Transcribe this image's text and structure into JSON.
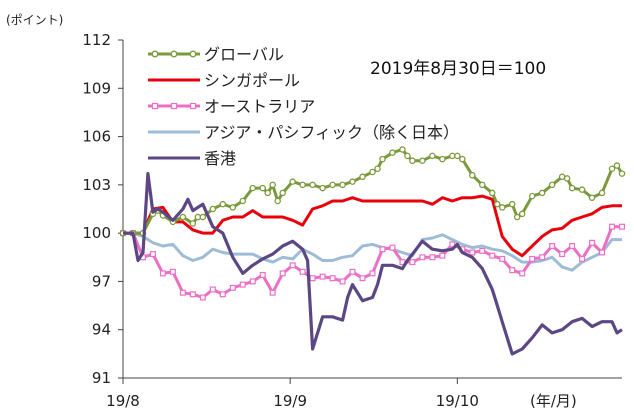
{
  "chart_data": {
    "type": "line",
    "title": "",
    "ylabel": "(ポイント)",
    "xunit": "(年/月)",
    "annotation": "2019年8月30日＝100",
    "ylim": [
      91,
      112
    ],
    "yticks": [
      91,
      94,
      97,
      100,
      103,
      106,
      109,
      112
    ],
    "xlim": [
      0,
      100
    ],
    "xtick_positions": [
      0,
      33.5,
      67
    ],
    "xtick_labels": [
      "19/8",
      "19/9",
      "19/10"
    ],
    "grid": false,
    "legend_position": "top-left",
    "series": [
      {
        "name": "グローバル",
        "color": "#7b9a3c",
        "marker": "circle",
        "x": [
          0,
          2,
          4,
          6,
          7,
          8,
          10,
          12,
          14,
          15,
          16,
          18,
          20,
          22,
          24,
          26,
          28,
          29,
          30,
          31,
          32,
          34,
          36,
          38,
          40,
          42,
          44,
          46,
          48,
          50,
          51,
          52,
          54,
          56,
          57,
          58,
          60,
          62,
          64,
          66,
          67,
          68,
          70,
          72,
          74,
          75,
          76,
          78,
          79,
          80,
          82,
          84,
          86,
          88,
          89,
          90,
          92,
          94,
          96,
          98,
          99,
          100
        ],
        "y": [
          100,
          100,
          100,
          101.2,
          101.4,
          101.1,
          100.7,
          101,
          100.6,
          101,
          101,
          101.5,
          101.8,
          101.6,
          102,
          102.8,
          102.8,
          102.5,
          103,
          102,
          102.5,
          103.2,
          103,
          103,
          102.8,
          103,
          103,
          103.2,
          103.5,
          103.8,
          104,
          104.6,
          105,
          105.2,
          104.8,
          104.5,
          104.5,
          104.8,
          104.6,
          104.8,
          104.8,
          104.6,
          103.6,
          103,
          102.5,
          101.8,
          101.6,
          101.8,
          101,
          101.2,
          102.3,
          102.5,
          103,
          103.5,
          103.4,
          102.8,
          102.7,
          102.2,
          102.5,
          104,
          104.2,
          103.7
        ]
      },
      {
        "name": "シンガポール",
        "color": "#e8000b",
        "marker": "none",
        "x": [
          0,
          2,
          4,
          6,
          8,
          10,
          12,
          14,
          16,
          18,
          20,
          22,
          24,
          26,
          28,
          30,
          32,
          34,
          36,
          38,
          40,
          42,
          44,
          46,
          48,
          50,
          52,
          54,
          56,
          58,
          60,
          62,
          64,
          66,
          68,
          70,
          72,
          74,
          76,
          78,
          80,
          82,
          84,
          86,
          88,
          90,
          92,
          94,
          96,
          98,
          100
        ],
        "y": [
          100,
          100,
          100,
          101.5,
          101.6,
          100.7,
          100.7,
          100.2,
          100,
          100,
          100.8,
          101,
          101,
          101.4,
          101,
          101,
          101,
          100.8,
          100.5,
          101.5,
          101.7,
          102,
          102,
          102.2,
          102,
          102,
          102,
          102,
          102,
          102,
          102,
          101.8,
          102.2,
          102,
          102.2,
          102.2,
          102.3,
          102.1,
          99.8,
          99,
          98.6,
          99.2,
          99.8,
          100.2,
          100.3,
          100.8,
          101,
          101.2,
          101.6,
          101.7,
          101.7
        ]
      },
      {
        "name": "オーストラリア",
        "color": "#ec6fc6",
        "marker": "square",
        "x": [
          0,
          2,
          4,
          6,
          8,
          10,
          12,
          14,
          16,
          18,
          20,
          22,
          24,
          26,
          28,
          30,
          32,
          34,
          36,
          38,
          40,
          42,
          44,
          46,
          48,
          50,
          52,
          54,
          56,
          58,
          60,
          62,
          64,
          66,
          68,
          70,
          72,
          74,
          76,
          78,
          80,
          82,
          84,
          86,
          88,
          90,
          92,
          94,
          96,
          98,
          100
        ],
        "y": [
          100,
          100,
          98.5,
          98.7,
          97.5,
          97.6,
          96.3,
          96.2,
          96,
          96.5,
          96.2,
          96.6,
          96.8,
          97,
          97.4,
          96.3,
          97.5,
          98,
          97.6,
          97.2,
          97.3,
          97.2,
          97,
          97.6,
          97.2,
          97.5,
          99,
          99.1,
          98.2,
          98.2,
          98.5,
          98.5,
          98.6,
          99.3,
          99,
          98.8,
          98.9,
          98.6,
          98.4,
          97.7,
          97.5,
          98.4,
          98.5,
          99.2,
          98.7,
          99.2,
          98.4,
          99.4,
          98.8,
          100.4,
          100.4
        ]
      },
      {
        "name": "アジア・パシフィック（除く日本）",
        "color": "#9ebcd6",
        "marker": "none",
        "x": [
          0,
          2,
          4,
          6,
          8,
          10,
          12,
          14,
          16,
          18,
          20,
          22,
          24,
          26,
          28,
          30,
          32,
          34,
          36,
          38,
          40,
          42,
          44,
          46,
          48,
          50,
          52,
          54,
          56,
          58,
          60,
          62,
          64,
          66,
          68,
          70,
          72,
          74,
          76,
          78,
          80,
          82,
          84,
          86,
          88,
          90,
          92,
          94,
          96,
          98,
          100
        ],
        "y": [
          100,
          100,
          99.8,
          99.4,
          99.2,
          99.3,
          98.6,
          98.3,
          98.5,
          99,
          98.8,
          98.7,
          98.7,
          98.7,
          98.4,
          98.2,
          98.5,
          98.4,
          99,
          98.7,
          98.3,
          98.3,
          98.5,
          98.6,
          99.2,
          99.3,
          99.1,
          99,
          98.8,
          98.6,
          99.6,
          99.7,
          99.9,
          99.6,
          99.3,
          99.1,
          99.2,
          99,
          98.9,
          98.6,
          98.2,
          98.2,
          98.3,
          98.5,
          97.9,
          97.7,
          98.2,
          98.5,
          98.8,
          99.6,
          99.6
        ]
      },
      {
        "name": "香港",
        "color": "#5c4785",
        "marker": "none",
        "x": [
          0,
          2,
          3,
          4,
          5,
          6,
          7,
          8,
          10,
          12,
          13,
          14,
          16,
          18,
          20,
          22,
          24,
          26,
          28,
          30,
          32,
          34,
          36,
          37,
          38,
          40,
          42,
          44,
          45,
          46,
          48,
          50,
          51,
          52,
          54,
          56,
          57,
          58,
          60,
          62,
          64,
          66,
          67,
          68,
          70,
          72,
          74,
          75,
          76,
          78,
          80,
          82,
          84,
          86,
          88,
          90,
          92,
          94,
          96,
          98,
          99,
          100
        ],
        "y": [
          100,
          100,
          98.3,
          98.8,
          103.7,
          101.3,
          101.5,
          101.3,
          100.8,
          101.5,
          102.1,
          101.4,
          101.8,
          100.4,
          100,
          98.5,
          97.5,
          98,
          98.4,
          98.7,
          99.2,
          99.5,
          99,
          98.3,
          92.8,
          94.8,
          94.8,
          94.6,
          96,
          96.8,
          95.8,
          96,
          96.8,
          98,
          98,
          97.8,
          98.3,
          98.7,
          99.5,
          99,
          98.9,
          99,
          99.3,
          98.8,
          98.5,
          97.8,
          96.5,
          95.5,
          94.5,
          92.5,
          92.8,
          93.5,
          94.3,
          93.8,
          94,
          94.5,
          94.7,
          94.2,
          94.5,
          94.5,
          93.8,
          94
        ]
      }
    ]
  }
}
